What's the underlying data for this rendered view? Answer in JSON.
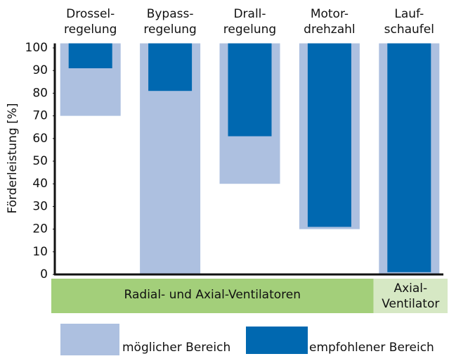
{
  "chart_data": {
    "type": "range-bar",
    "y_label": "Förderleistung [%]",
    "categories": [
      "Drossel-\nregelung",
      "Bypass-\nregelung",
      "Drall-\nregelung",
      "Motor-\ndrehzahl",
      "Lauf-\nschaufel"
    ],
    "series": [
      {
        "name": "möglicher Bereich",
        "color": "#adc0e0",
        "low": [
          70,
          0,
          40,
          20,
          0
        ],
        "high": [
          102,
          102,
          102,
          102,
          102
        ]
      },
      {
        "name": "empfohlener Bereich",
        "color": "#0068b0",
        "low": [
          91,
          81,
          61,
          21,
          1
        ],
        "high": [
          102,
          102,
          102,
          102,
          102
        ]
      }
    ],
    "groups": [
      {
        "label": "Radial- und Axial-Ventilatoren",
        "color": "#a3cf7a"
      },
      {
        "label": "Axial-\nVentilator",
        "color": "#d6e8c4"
      }
    ],
    "ylim": [
      0,
      102
    ],
    "yticks": [
      0,
      10,
      20,
      30,
      40,
      50,
      60,
      70,
      80,
      90,
      100
    ]
  }
}
